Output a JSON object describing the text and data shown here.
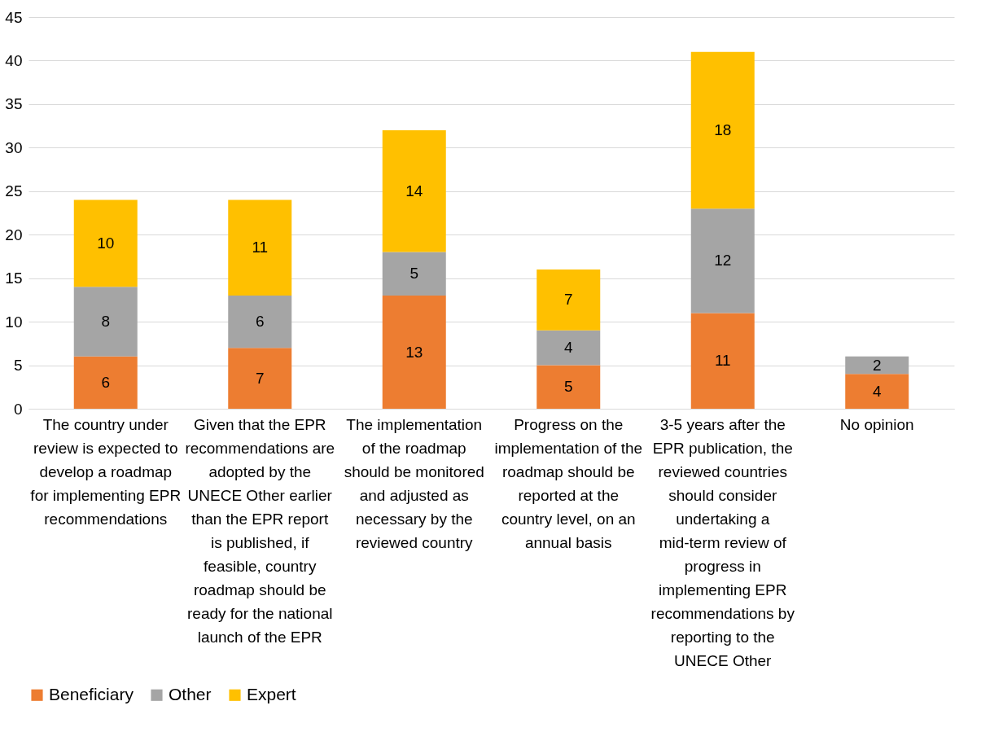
{
  "chart_data": {
    "type": "bar",
    "stacked": true,
    "data_labels": true,
    "grid": "y",
    "legend": "bottom",
    "categories": [
      "The country under review is expected to develop a roadmap for implementing EPR recommendations",
      "Given that the EPR recommendations are adopted by the UNECE Other earlier than the EPR report is published, if feasible, country roadmap should be ready for the national launch of the EPR",
      "The implementation of the roadmap should be monitored and adjusted as necessary by the reviewed country",
      "Progress on the implementation of the roadmap should be reported at the country level, on an annual basis",
      "3-5 years after the EPR publication, the reviewed countries should consider undertaking a mid-term review of progress in implementing EPR recommendations by reporting to the UNECE Other",
      "No opinion"
    ],
    "ylim": [
      0,
      45
    ],
    "yticks": [
      0,
      5,
      10,
      15,
      20,
      25,
      30,
      35,
      40,
      45
    ],
    "series": [
      {
        "name": "Beneficiary",
        "color": "#ed7d31",
        "values": [
          6,
          7,
          13,
          5,
          11,
          4
        ]
      },
      {
        "name": "Other",
        "color": "#a5a5a5",
        "values": [
          8,
          6,
          5,
          4,
          12,
          2
        ]
      },
      {
        "name": "Expert",
        "color": "#ffc000",
        "values": [
          10,
          11,
          14,
          7,
          18,
          null
        ]
      }
    ]
  }
}
